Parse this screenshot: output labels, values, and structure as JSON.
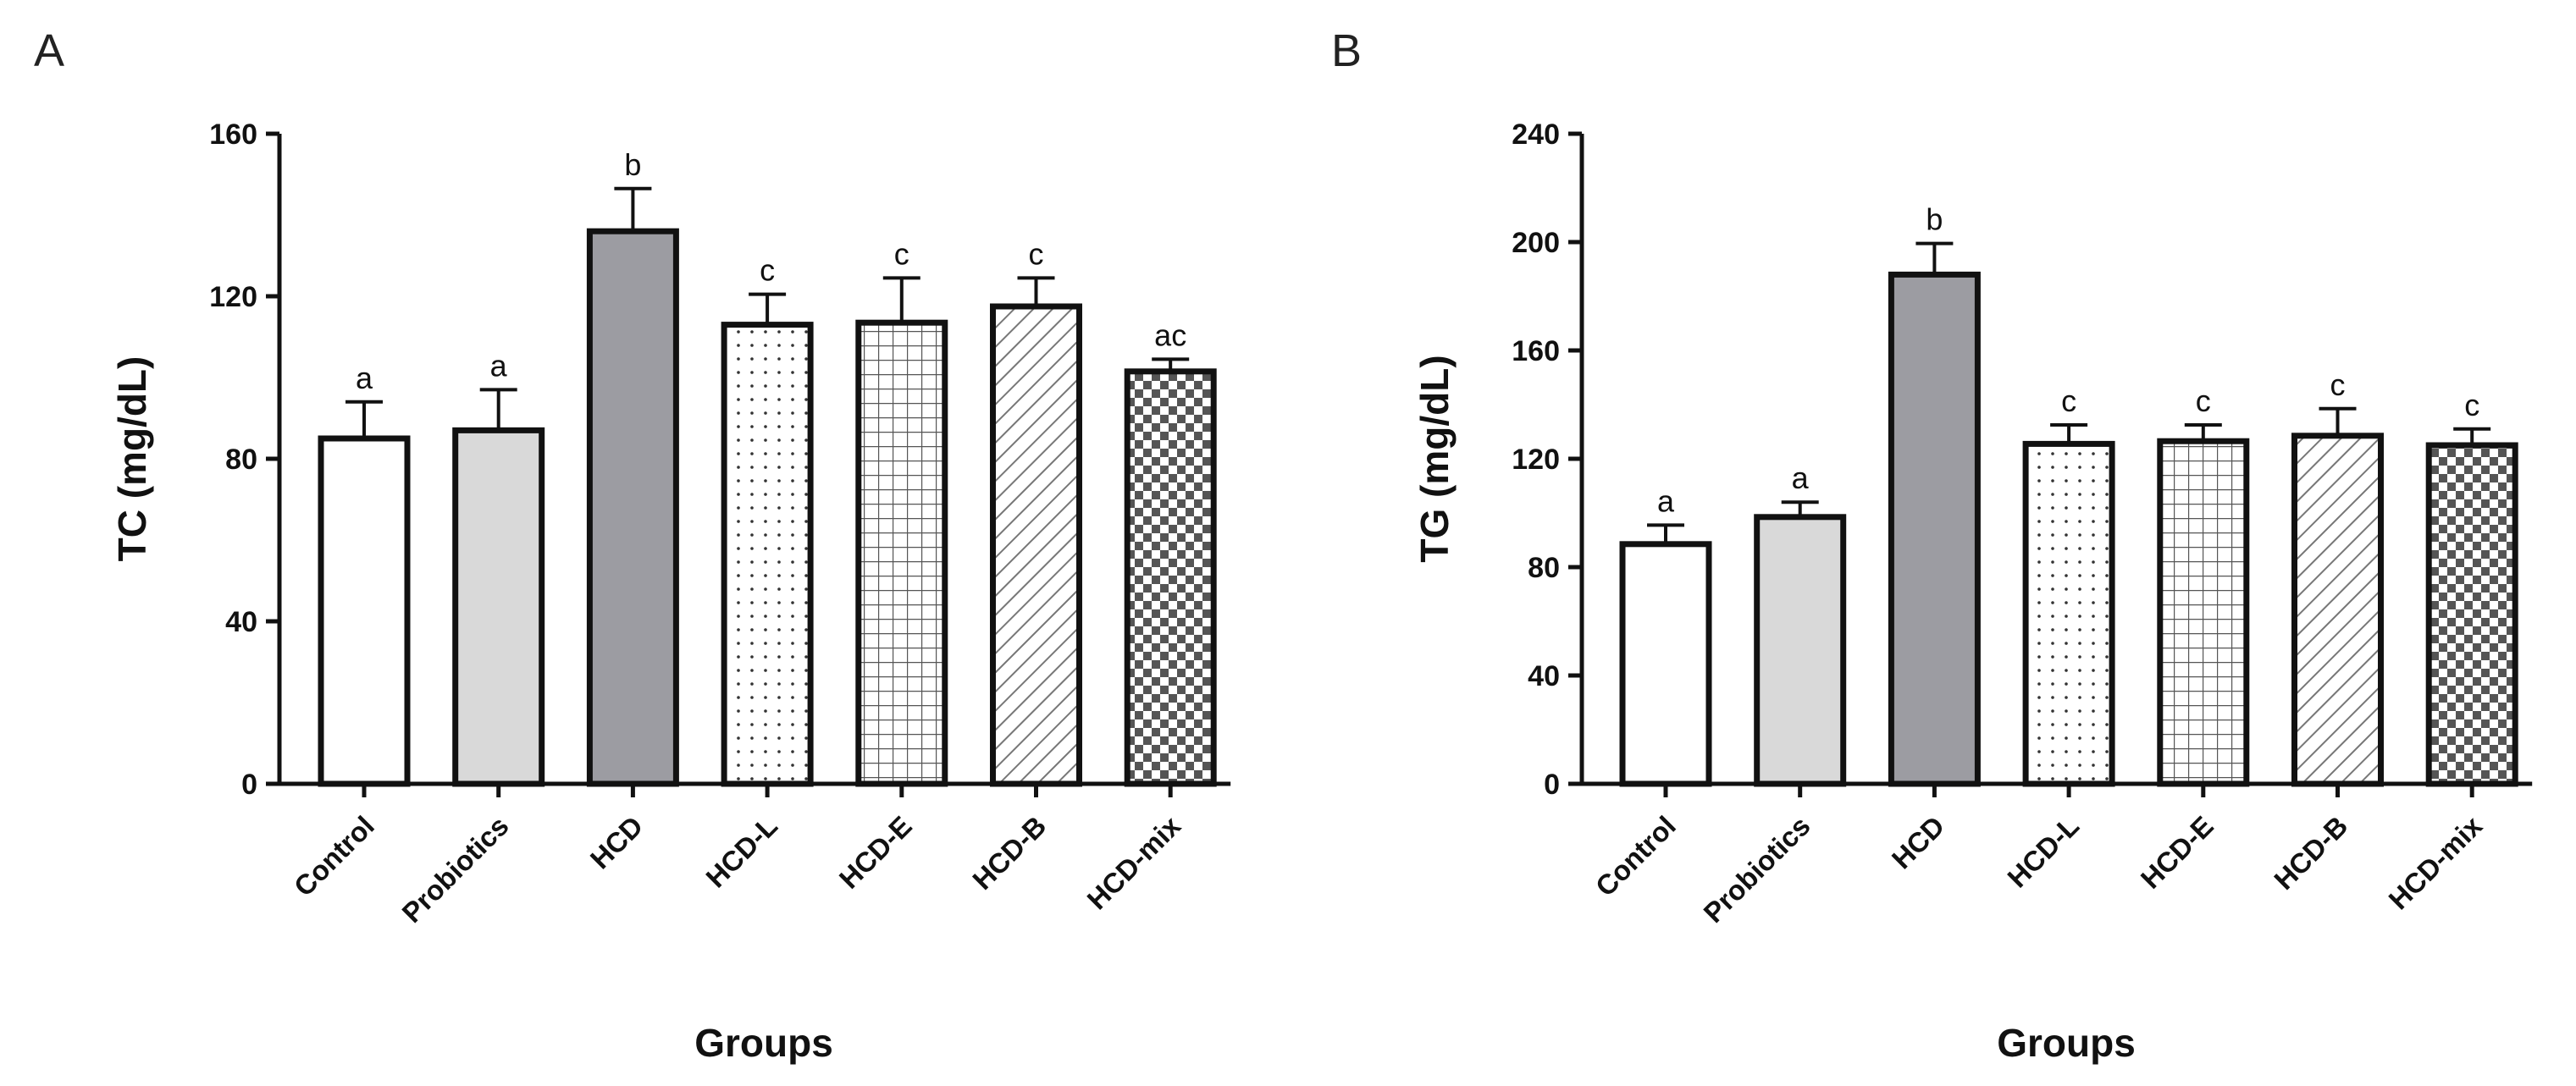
{
  "chart_data": [
    {
      "panel": "A",
      "type": "bar",
      "ylabel": "TC (mg/dL)",
      "xlabel": "Groups",
      "ylim": [
        0,
        160
      ],
      "yticks": [
        0,
        40,
        80,
        120,
        160
      ],
      "categories": [
        "Control",
        "Probiotics",
        "HCD",
        "HCD-L",
        "HCD-E",
        "HCD-B",
        "HCD-mix"
      ],
      "values": [
        85,
        87,
        136,
        113,
        113.5,
        117.5,
        101.5
      ],
      "errors": [
        9,
        10,
        10.5,
        7.5,
        11,
        7,
        3
      ],
      "significance": [
        "a",
        "a",
        "b",
        "c",
        "c",
        "c",
        "ac"
      ]
    },
    {
      "panel": "B",
      "type": "bar",
      "ylabel": "TG (mg/dL)",
      "xlabel": "Groups",
      "ylim": [
        0,
        240
      ],
      "yticks": [
        0,
        40,
        80,
        120,
        160,
        200,
        240
      ],
      "categories": [
        "Control",
        "Probiotics",
        "HCD",
        "HCD-L",
        "HCD-E",
        "HCD-B",
        "HCD-mix"
      ],
      "values": [
        88.5,
        98.5,
        188,
        125.5,
        126.5,
        128.5,
        125
      ],
      "errors": [
        7,
        5.5,
        11.5,
        7,
        6,
        10,
        6
      ],
      "significance": [
        "a",
        "a",
        "b",
        "c",
        "c",
        "c",
        "c"
      ]
    }
  ],
  "colors": {
    "axis": "#111111",
    "light_fill": "#d9d9d9",
    "dark_fill": "#9c9ca2",
    "pattern_ink": "#333333"
  },
  "fill_styles": [
    "white",
    "light-gray",
    "dark-gray",
    "dots",
    "grid",
    "diagonal-hatch",
    "checker"
  ]
}
